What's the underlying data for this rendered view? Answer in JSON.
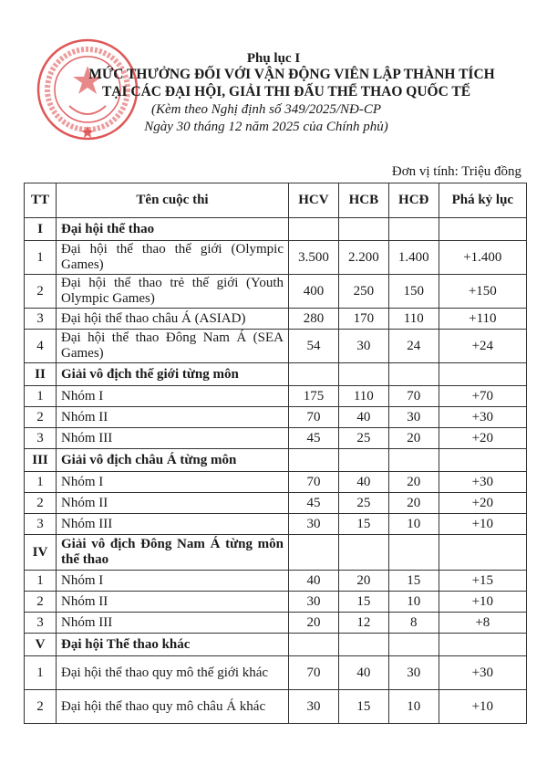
{
  "seal": {
    "text": "CHÍNH PHỦ NƯỚC CỘNG HÒA XÃ HỘI CHỦ NGHĨA VIỆT NAM",
    "color": "#d93a3a"
  },
  "header": {
    "appendix": "Phụ lục I",
    "title_line1": "MỨC THƯỞNG ĐỐI VỚI VẬN ĐỘNG VIÊN LẬP THÀNH TÍCH",
    "title_line2": "TẠI CÁC ĐẠI HỘI, GIẢI THI ĐẤU THỂ THAO QUỐC TẾ",
    "subtitle_line1": "(Kèm theo Nghị định số 349/2025/NĐ-CP",
    "subtitle_line2": "Ngày 30 tháng 12 năm 2025 của Chính phủ)",
    "unit": "Đơn vị tính: Triệu đồng"
  },
  "table": {
    "columns": [
      "TT",
      "Tên cuộc thi",
      "HCV",
      "HCB",
      "HCĐ",
      "Phá kỷ lục"
    ],
    "rows": [
      {
        "type": "section",
        "tt": "I",
        "name": "Đại hội thể thao"
      },
      {
        "tt": "1",
        "name": "Đại hội thể thao thế giới (Olympic Games)",
        "hcv": "3.500",
        "hcb": "2.200",
        "hcd": "1.400",
        "record": "+1.400",
        "two": true
      },
      {
        "tt": "2",
        "name": "Đại hội thể thao trẻ thế giới (Youth Olympic Games)",
        "hcv": "400",
        "hcb": "250",
        "hcd": "150",
        "record": "+150",
        "two": true
      },
      {
        "tt": "3",
        "name": "Đại hội thể thao châu Á (ASIAD)",
        "hcv": "280",
        "hcb": "170",
        "hcd": "110",
        "record": "+110"
      },
      {
        "tt": "4",
        "name": "Đại hội thể thao Đông Nam Á (SEA Games)",
        "hcv": "54",
        "hcb": "30",
        "hcd": "24",
        "record": "+24",
        "two": true
      },
      {
        "type": "section",
        "tt": "II",
        "name": "Giải vô địch thế giới từng môn"
      },
      {
        "tt": "1",
        "name": "Nhóm I",
        "hcv": "175",
        "hcb": "110",
        "hcd": "70",
        "record": "+70"
      },
      {
        "tt": "2",
        "name": "Nhóm II",
        "hcv": "70",
        "hcb": "40",
        "hcd": "30",
        "record": "+30"
      },
      {
        "tt": "3",
        "name": "Nhóm III",
        "hcv": "45",
        "hcb": "25",
        "hcd": "20",
        "record": "+20"
      },
      {
        "type": "section",
        "tt": "III",
        "name": "Giải vô địch châu Á từng môn"
      },
      {
        "tt": "1",
        "name": "Nhóm I",
        "hcv": "70",
        "hcb": "40",
        "hcd": "",
        "record": "+30"
      },
      {
        "tt": "2",
        "name": "Nhóm II",
        "hcv": "45",
        "hcb": "25",
        "hcd": "20",
        "record": "+20"
      },
      {
        "tt": "3",
        "name": "Nhóm III",
        "hcv": "30",
        "hcb": "15",
        "hcd": "10",
        "record": "+10"
      },
      {
        "type": "section",
        "tt": "IV",
        "name": "Giải vô địch Đông Nam Á từng môn thể thao",
        "two": true
      },
      {
        "tt": "1",
        "name": "Nhóm I",
        "hcv": "40",
        "hcb": "20",
        "hcd": "15",
        "record": "+15"
      },
      {
        "tt": "2",
        "name": "Nhóm II",
        "hcv": "30",
        "hcb": "15",
        "hcd": "10",
        "record": "+10"
      },
      {
        "tt": "3",
        "name": "Nhóm III",
        "hcv": "20",
        "hcb": "12",
        "hcd": "8",
        "record": "+8"
      },
      {
        "type": "section",
        "tt": "V",
        "name": "Đại hội Thể thao khác"
      },
      {
        "tt": "1",
        "name": "Đại hội thể thao quy mô thế giới khác",
        "hcv": "70",
        "hcb": "40",
        "hcd": "30",
        "record": "+30",
        "two": true
      },
      {
        "tt": "2",
        "name": "Đại hội thể thao quy mô châu Á khác",
        "hcv": "30",
        "hcb": "15",
        "hcd": "10",
        "record": "+10",
        "two": true
      }
    ]
  }
}
